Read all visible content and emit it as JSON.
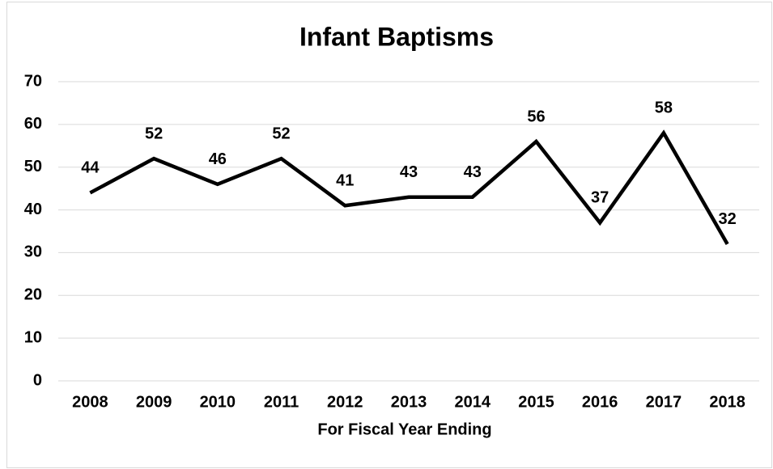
{
  "chart_data": {
    "type": "line",
    "title": "Infant Baptisms",
    "x_label": "For Fiscal Year Ending",
    "categories": [
      "2008",
      "2009",
      "2010",
      "2011",
      "2012",
      "2013",
      "2014",
      "2015",
      "2016",
      "2017",
      "2018"
    ],
    "values": [
      44,
      52,
      46,
      52,
      41,
      43,
      43,
      56,
      37,
      58,
      32
    ],
    "color": "#000000",
    "ylim": [
      0,
      70
    ],
    "yticks": [
      0,
      10,
      20,
      30,
      40,
      50,
      60,
      70
    ],
    "grid": true,
    "data_labels": true
  }
}
